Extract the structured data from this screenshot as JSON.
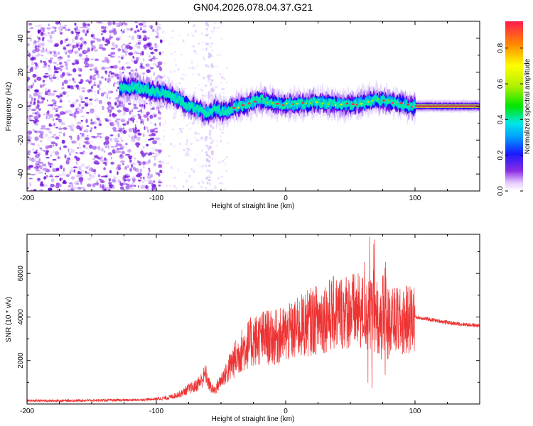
{
  "page": {
    "title": "GN04.2026.078.04.37.G21"
  },
  "chart_data": [
    {
      "type": "heatmap",
      "title": "GN04.2026.078.04.37.G21",
      "xlabel": "Height of straight line (km)",
      "ylabel": "Frequency (Hz)",
      "xlim": [
        -200,
        150
      ],
      "ylim": [
        -50,
        50
      ],
      "x_ticks": [
        -200,
        -100,
        0,
        100
      ],
      "y_ticks": [
        -40,
        -20,
        0,
        20,
        40
      ],
      "colorbar": {
        "label": "Normalized spectral amplitude",
        "range": [
          0,
          0.95
        ],
        "ticks": [
          0.0,
          0.2,
          0.4,
          0.6,
          0.8
        ]
      },
      "ridge": {
        "x": [
          -125,
          -115,
          -105,
          -95,
          -85,
          -75,
          -65,
          -60,
          -55,
          -50,
          -45,
          -40,
          -30,
          -20,
          -10,
          0,
          10,
          20,
          30,
          40,
          50,
          60,
          70,
          80,
          90,
          100,
          110,
          120,
          130,
          140,
          150
        ],
        "frequency": [
          11,
          11,
          9,
          8,
          5,
          0,
          -3,
          -4,
          -2,
          -3,
          -3,
          -1,
          1,
          4,
          2,
          1,
          1,
          2,
          2,
          1,
          1,
          2,
          4,
          3,
          1,
          0,
          0,
          0,
          0,
          0,
          0
        ]
      },
      "noise_region_x": [
        -200,
        -95
      ],
      "grid": false
    },
    {
      "type": "line",
      "xlabel": "Height of straight line (km)",
      "ylabel": "SNR (10 * v/v)",
      "xlim": [
        -200,
        150
      ],
      "ylim": [
        0,
        7800
      ],
      "x_ticks": [
        -200,
        -100,
        0,
        100
      ],
      "y_ticks": [
        2000,
        4000,
        6000
      ],
      "color": "#ee3333",
      "series": [
        {
          "x": [
            -200,
            -180,
            -160,
            -140,
            -120,
            -110,
            -100,
            -90,
            -80,
            -75,
            -70,
            -65,
            -62,
            -60,
            -57,
            -55,
            -50,
            -45,
            -40,
            -35,
            -30,
            -25,
            -20,
            -15,
            -10,
            -5,
            0,
            5,
            10,
            20,
            30,
            40,
            50,
            60,
            65,
            70,
            73,
            75,
            78,
            80,
            85,
            90,
            95,
            100,
            110,
            120,
            130,
            140,
            150
          ],
          "values": [
            150,
            150,
            160,
            170,
            180,
            200,
            230,
            300,
            500,
            700,
            800,
            1100,
            1400,
            1000,
            700,
            600,
            1100,
            1500,
            2000,
            2400,
            2700,
            2900,
            3000,
            3100,
            3000,
            3100,
            3200,
            3300,
            3500,
            3800,
            4000,
            4200,
            4300,
            4200,
            4000,
            4100,
            3800,
            4200,
            3900,
            3700,
            3800,
            3700,
            3900,
            4000,
            3900,
            3800,
            3700,
            3650,
            3600
          ]
        }
      ],
      "grid": false
    }
  ]
}
